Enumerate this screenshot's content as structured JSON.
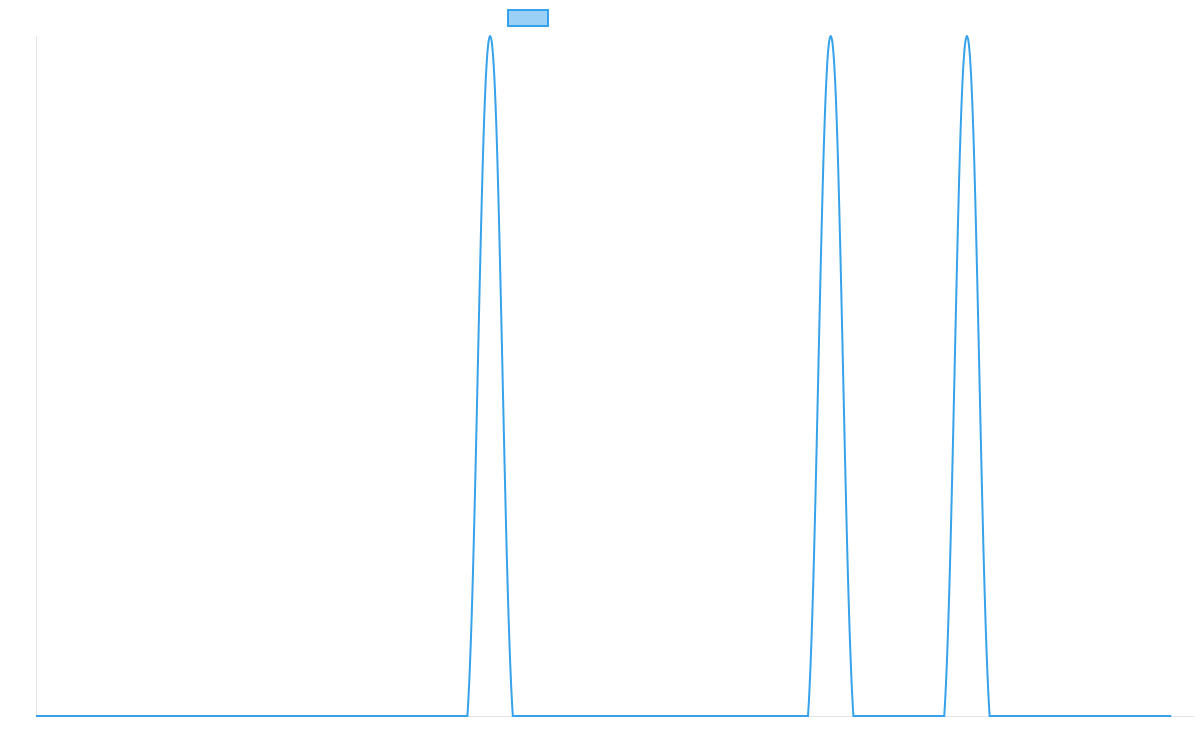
{
  "colors": {
    "line": "#36a2eb",
    "legend_fill": "#9ad0f5",
    "axis": "#e5e5e5",
    "background": "#ffffff"
  },
  "legend": {
    "label": "",
    "placement": "top-center"
  },
  "chart_data": {
    "type": "line",
    "title": "",
    "xlabel": "",
    "ylabel": "",
    "grid": false,
    "x": [
      0,
      1,
      2,
      3,
      4,
      5,
      6,
      7,
      8,
      9,
      10,
      11,
      12,
      13,
      14,
      15,
      16,
      17,
      18,
      19,
      20,
      21,
      22,
      23,
      24,
      25,
      26,
      27,
      28,
      29,
      30,
      31,
      32,
      33,
      34,
      35,
      36,
      37,
      38,
      39,
      40,
      41,
      42,
      43,
      44,
      45,
      46,
      47,
      48,
      49,
      50
    ],
    "xlim": [
      0,
      51
    ],
    "ylim": [
      0,
      1
    ],
    "series": [
      {
        "values": [
          0,
          0,
          0,
          0,
          0,
          0,
          0,
          0,
          0,
          0,
          0,
          0,
          0,
          0,
          0,
          0,
          0,
          0,
          0,
          0,
          1,
          0,
          0,
          0,
          0,
          0,
          0,
          0,
          0,
          0,
          0,
          0,
          0,
          0,
          0,
          1,
          0,
          0,
          0,
          0,
          0,
          1,
          0,
          0,
          0,
          0,
          0,
          0,
          0,
          0,
          0
        ]
      }
    ]
  }
}
